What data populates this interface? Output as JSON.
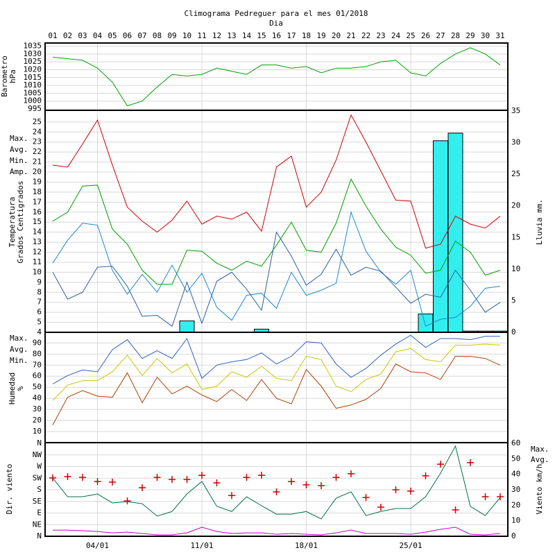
{
  "chart_data": [
    {
      "type": "line",
      "title": "Climograma Pedreguer para el mes 01/2018",
      "x_label": "Dia",
      "categories": [
        "01",
        "02",
        "03",
        "04",
        "05",
        "06",
        "07",
        "08",
        "09",
        "10",
        "11",
        "12",
        "13",
        "14",
        "15",
        "16",
        "17",
        "18",
        "19",
        "20",
        "21",
        "22",
        "23",
        "24",
        "25",
        "26",
        "27",
        "28",
        "29",
        "30",
        "31"
      ],
      "ylabel": [
        "Barometro",
        "hPa"
      ],
      "label_color": "#00a000",
      "ylim": [
        995,
        1037
      ],
      "yticks": [
        995,
        1000,
        1005,
        1010,
        1015,
        1020,
        1025,
        1030,
        1035
      ],
      "grid": true,
      "series": [
        {
          "color": "#00a000",
          "values": [
            1028,
            1027,
            1026,
            1021,
            1012,
            997,
            1000,
            1009,
            1017,
            1016,
            1017,
            1021,
            1019,
            1017,
            1023,
            1023,
            1021,
            1022,
            1018,
            1021,
            1021,
            1022,
            1025,
            1026,
            1018,
            1016,
            1024,
            1030,
            1034,
            1030,
            1023
          ]
        }
      ]
    },
    {
      "type": "line",
      "ylabel": [
        "Temperatura",
        "Grados Centigrados"
      ],
      "label_color": "#cc0000",
      "y2label": "Lluvia mm.",
      "y2label_color": "#00d8d8",
      "legend": "left",
      "ylim": [
        4,
        26.1
      ],
      "yticks": [
        4,
        5,
        6,
        7,
        8,
        9,
        10,
        11,
        12,
        13,
        14,
        15,
        16,
        17,
        18,
        19,
        20,
        21,
        22,
        23,
        24,
        25
      ],
      "y2lim": [
        0,
        35
      ],
      "y2ticks": [
        0,
        5,
        10,
        15,
        20,
        25,
        30,
        35
      ],
      "grid": true,
      "series": [
        {
          "name": "Lluvia",
          "type": "bar",
          "axis": "y2",
          "color": "#33eeee",
          "values": [
            0,
            0,
            0,
            0,
            0,
            0,
            0,
            0,
            0,
            1.8,
            0,
            0,
            0,
            0,
            0.5,
            0,
            0,
            0,
            0,
            0,
            0,
            0,
            0,
            0,
            0,
            2.9,
            30.3,
            31.5,
            0.2,
            0.2,
            0.2
          ]
        },
        {
          "name": "Max.",
          "color": "#cc0000",
          "values": [
            20.7,
            20.5,
            22.8,
            25.2,
            20.7,
            16.5,
            15.1,
            14,
            15.2,
            17.1,
            14.8,
            15.6,
            15.3,
            16,
            14.1,
            20.5,
            21.6,
            16.5,
            18,
            21.2,
            25.7,
            23,
            20.1,
            17.2,
            17.1,
            12.4,
            12.8,
            15.6,
            14.8,
            14.4,
            15.6
          ]
        },
        {
          "name": "Avg.",
          "color": "#00a000",
          "values": [
            15.1,
            16,
            18.6,
            18.7,
            14.3,
            12.8,
            10.2,
            8.8,
            8.8,
            12.2,
            12.1,
            10.9,
            10.2,
            11.1,
            10.6,
            12.7,
            15,
            12.2,
            12,
            14.9,
            19.3,
            16.6,
            14.3,
            12.5,
            11.7,
            9.9,
            10.2,
            13.1,
            12,
            9.7,
            10.2
          ]
        },
        {
          "name": "Min.",
          "color": "#1a88d0",
          "values": [
            10.9,
            13.2,
            14.9,
            14.7,
            10.2,
            7.8,
            9.8,
            8,
            10.7,
            8,
            9.9,
            6.5,
            5.2,
            7.7,
            7.9,
            6.4,
            10,
            7.7,
            8.2,
            8.9,
            16,
            12.1,
            10,
            8.8,
            10.2,
            4.6,
            5.3,
            5.5,
            6.6,
            8.4,
            8.6
          ]
        },
        {
          "name": "Amp.",
          "color": "#2a5fa0",
          "values": [
            10,
            7.3,
            8,
            10.5,
            10.6,
            8.6,
            5.6,
            5.7,
            4.6,
            9,
            4.9,
            9.1,
            10,
            8.3,
            6.2,
            14,
            11.6,
            8.7,
            9.8,
            12.3,
            9.7,
            10.5,
            10.1,
            8.5,
            6.9,
            7.8,
            7.5,
            10.2,
            8.2,
            6,
            7
          ]
        }
      ]
    },
    {
      "type": "line",
      "ylabel": [
        "Humedad",
        "%"
      ],
      "label_color": "#b04000",
      "legend": "left",
      "ylim": [
        0,
        99
      ],
      "yticks": [
        10,
        20,
        30,
        40,
        50,
        60,
        70,
        80,
        90
      ],
      "grid": true,
      "series": [
        {
          "name": "Max.",
          "color": "#3060c0",
          "values": [
            53,
            60.6,
            65.6,
            64,
            84,
            93,
            76,
            83,
            76,
            94,
            58,
            70,
            73,
            75,
            81,
            71,
            78,
            91,
            90,
            71,
            59,
            67,
            79,
            89,
            97,
            86,
            94,
            94,
            93,
            96,
            96
          ]
        },
        {
          "name": "Avg.",
          "color": "#c8c800",
          "values": [
            38,
            52,
            56,
            56,
            64,
            79,
            60.6,
            76,
            63,
            71,
            48,
            51,
            64,
            59,
            69,
            58,
            56,
            78,
            75,
            51,
            46,
            57,
            62,
            82,
            85,
            75,
            73,
            88,
            88,
            89,
            88
          ]
        },
        {
          "name": "Min.",
          "color": "#b04000",
          "values": [
            16,
            41,
            47,
            42,
            41,
            63,
            36,
            59,
            44,
            51,
            43,
            37,
            48,
            38,
            57,
            40,
            35,
            66,
            51,
            31,
            34,
            39,
            49,
            71,
            64,
            63,
            57,
            78,
            78,
            76,
            70
          ]
        }
      ]
    },
    {
      "type": "line",
      "ylabel": [
        "Dir. viento"
      ],
      "label_color": "#cc0000",
      "y2label": "Viento km/h",
      "y2label_color": "#c000c0",
      "legend": "right",
      "ylim": [
        0,
        360
      ],
      "yticks": [
        {
          "value": 0,
          "label": "N"
        },
        {
          "value": 45,
          "label": "NE"
        },
        {
          "value": 90,
          "label": "E"
        },
        {
          "value": 135,
          "label": "SE"
        },
        {
          "value": 180,
          "label": "S"
        },
        {
          "value": 225,
          "label": "SW"
        },
        {
          "value": 270,
          "label": "W"
        },
        {
          "value": 315,
          "label": "NW"
        },
        {
          "value": 360,
          "label": "N"
        }
      ],
      "y2lim": [
        0,
        60
      ],
      "y2ticks": [
        0,
        10,
        20,
        30,
        40,
        50,
        60
      ],
      "grid": true,
      "xticks": [
        {
          "value": 4,
          "label": "04/01"
        },
        {
          "value": 11,
          "label": "11/01"
        },
        {
          "value": 18,
          "label": "18/01"
        },
        {
          "value": 25,
          "label": "25/01"
        }
      ],
      "series": [
        {
          "name": "Dir.",
          "type": "scatter",
          "color": "#cc0000",
          "values": [
            226,
            231,
            228,
            212,
            210,
            137,
            188,
            228,
            220,
            220,
            236,
            207,
            158,
            228,
            236,
            172,
            212,
            199,
            196,
            228,
            242,
            150,
            113,
            180,
            175,
            234,
            279,
            102,
            285,
            153,
            153
          ]
        },
        {
          "name": "Max.",
          "axis": "y2",
          "color": "#007050",
          "values": [
            37.6,
            25.5,
            25.5,
            27.3,
            21.5,
            22.4,
            21,
            13,
            16,
            27.3,
            35.4,
            19.3,
            16,
            25.5,
            19.7,
            14.3,
            14.3,
            16,
            11.2,
            24.6,
            28.7,
            13.4,
            16,
            17.9,
            17.9,
            25.5,
            40.7,
            58.2,
            19.3,
            13.4,
            25
          ]
        },
        {
          "name": "Avg.",
          "axis": "y2",
          "color": "#c000c0",
          "values": [
            4,
            4,
            3.6,
            3.1,
            2.2,
            2.7,
            1.8,
            0.9,
            0.9,
            2.2,
            5.8,
            3.1,
            1.8,
            2.2,
            2.2,
            1.3,
            1.8,
            1.3,
            0.9,
            2.2,
            4,
            1.8,
            1.8,
            1.8,
            1.3,
            2.7,
            4.5,
            5.8,
            1.3,
            0.9,
            1.8
          ]
        }
      ]
    }
  ]
}
